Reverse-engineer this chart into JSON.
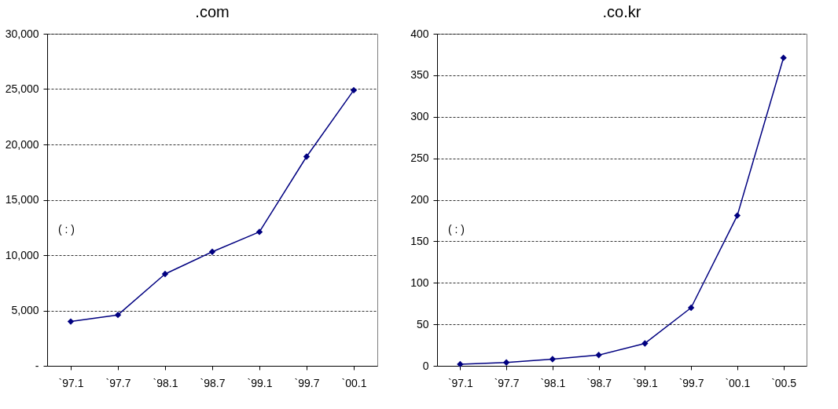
{
  "chart_data": [
    {
      "type": "line",
      "title": ".com",
      "categories": [
        "`97.1",
        "`97.7",
        "`98.1",
        "`98.7",
        "`99.1",
        "`99.7",
        "`00.1"
      ],
      "series": [
        {
          "color": "#000080",
          "values": [
            4000,
            4600,
            8300,
            10300,
            12100,
            18900,
            24900
          ]
        }
      ],
      "ylim": [
        0,
        30000
      ],
      "yticks": [
        {
          "value": 0,
          "label": "-"
        },
        {
          "value": 5000,
          "label": "5,000"
        },
        {
          "value": 10000,
          "label": "10,000"
        },
        {
          "value": 15000,
          "label": "15,000"
        },
        {
          "value": 20000,
          "label": "20,000"
        },
        {
          "value": 25000,
          "label": "25,000"
        },
        {
          "value": 30000,
          "label": "30,000"
        }
      ],
      "grid": "y",
      "marker": "diamond",
      "legend": false,
      "annotations": [
        "(      :      )"
      ]
    },
    {
      "type": "line",
      "title": ".co.kr",
      "categories": [
        "`97.1",
        "`97.7",
        "`98.1",
        "`98.7",
        "`99.1",
        "`99.7",
        "`00.1",
        "`00.5"
      ],
      "series": [
        {
          "color": "#000080",
          "values": [
            2,
            4,
            8,
            13,
            27,
            70,
            181,
            371
          ]
        }
      ],
      "ylim": [
        0,
        400
      ],
      "yticks": [
        0,
        50,
        100,
        150,
        200,
        250,
        300,
        350,
        400
      ],
      "grid": "y",
      "marker": "diamond",
      "legend": false,
      "annotations": [
        "(      :      )"
      ]
    }
  ]
}
